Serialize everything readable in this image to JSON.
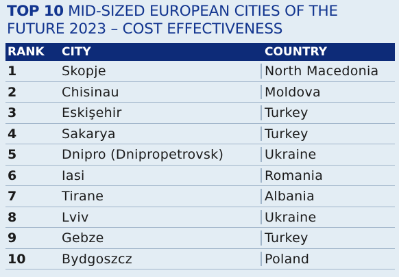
{
  "title": {
    "bold": "TOP 10",
    "rest": " MID-SIZED EUROPEAN CITIES OF THE",
    "line2": "FUTURE 2023 – COST EFFECTIVENESS"
  },
  "table": {
    "columns": [
      "RANK",
      "CITY",
      "COUNTRY"
    ],
    "rows": [
      {
        "rank": "1",
        "city": "Skopje",
        "country": "North Macedonia"
      },
      {
        "rank": "2",
        "city": "Chisinau",
        "country": "Moldova"
      },
      {
        "rank": "3",
        "city": "Eskişehir",
        "country": "Turkey"
      },
      {
        "rank": "4",
        "city": "Sakarya",
        "country": "Turkey"
      },
      {
        "rank": "5",
        "city": "Dnipro (Dnipropetrovsk)",
        "country": "Ukraine"
      },
      {
        "rank": "6",
        "city": "Iasi",
        "country": "Romania"
      },
      {
        "rank": "7",
        "city": "Tirane",
        "country": "Albania"
      },
      {
        "rank": "8",
        "city": "Lviv",
        "country": "Ukraine"
      },
      {
        "rank": "9",
        "city": "Gebze",
        "country": "Turkey"
      },
      {
        "rank": "10",
        "city": "Bydgoszcz",
        "country": "Poland"
      }
    ]
  },
  "colors": {
    "title": "#12358f",
    "header_bg": "#0d2b78",
    "background": "#e3edf4",
    "rule": "#9fb4c9"
  }
}
